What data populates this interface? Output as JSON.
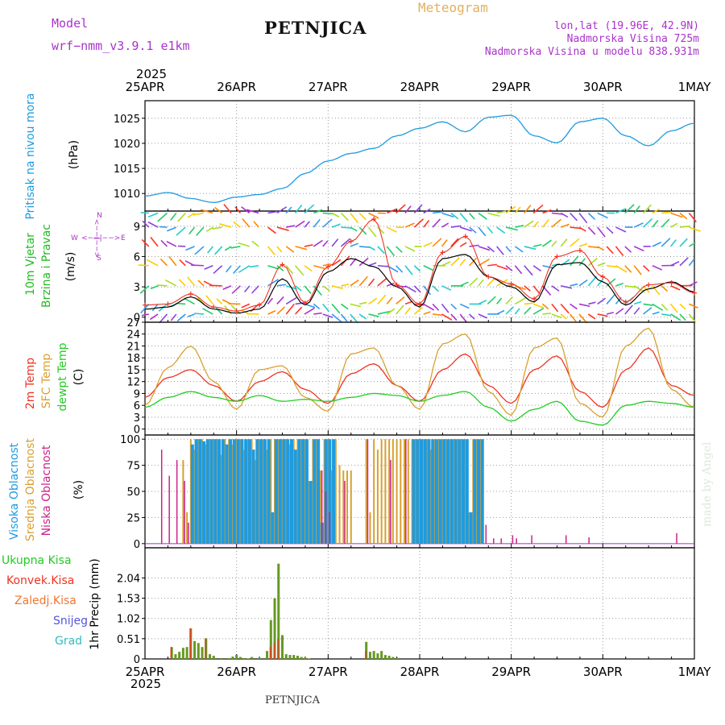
{
  "header": {
    "model_label": "Model",
    "model_name": "wrf−nmm_v3.9.1  e1km",
    "station": "PETNJICA",
    "meteogram": "Meteogram",
    "lonlat": "lon,lat (19.96E, 42.9N)",
    "elevation": "Nadmorska Visina 725m",
    "model_elevation": "Nadmorska Visina u modelu 838.931m",
    "footer_station": "PETNJICA",
    "credit": "made by Angel"
  },
  "colors": {
    "pressure": "#1e9be0",
    "wind_label": "#22bb22",
    "temp2m": "#ee3322",
    "sfc": "#d8a030",
    "dewpt": "#22cc22",
    "high_cloud": "#1e9be0",
    "mid_cloud": "#d8a030",
    "low_cloud": "#cc2288",
    "precip_total": "#669922",
    "precip_conv": "#ee3322",
    "frozen": "#ee7733",
    "snow": "#5555dd",
    "hail": "#33bbbb",
    "purple": "#aa33cc",
    "title_gold": "#e0b060"
  },
  "chart_data": [
    {
      "type": "line",
      "panel": "pressure",
      "ylabel_colored": "Pritisak na nivou mora",
      "ylabel_unit": "(hPa)",
      "xticks": [
        "25APR",
        "26APR",
        "27APR",
        "28APR",
        "29APR",
        "30APR",
        "1MAY"
      ],
      "year": "2025",
      "ylim": [
        1006.5,
        1028.5
      ],
      "yticks": [
        1010,
        1015,
        1020,
        1025
      ],
      "x_unit": "hours since 25APR 00UTC",
      "series": [
        {
          "name": "sea level pressure",
          "x": [
            0,
            6,
            12,
            18,
            24,
            30,
            36,
            42,
            48,
            54,
            60,
            66,
            72,
            78,
            84,
            90,
            96,
            102,
            108,
            114,
            120,
            126,
            132,
            138,
            144
          ],
          "values": [
            1009.5,
            1010.2,
            1009.0,
            1008.2,
            1009.3,
            1009.8,
            1011.0,
            1014.0,
            1016.5,
            1018.0,
            1019.0,
            1021.5,
            1023.0,
            1024.3,
            1022.3,
            1025.2,
            1025.6,
            1021.5,
            1020.1,
            1024.3,
            1025.0,
            1021.5,
            1019.5,
            1022.5,
            1024.0
          ]
        }
      ]
    },
    {
      "type": "line",
      "panel": "wind",
      "ylabel_colored": "10m Vjetar",
      "ylabel_colored2": "Brzina i Pravac",
      "ylabel_unit": "(m/s)",
      "compass": [
        "W",
        "<−−|−−>",
        "E",
        "S",
        "N"
      ],
      "ylim": [
        -0.5,
        10.5
      ],
      "yticks": [
        0,
        3,
        6,
        9
      ],
      "series": [
        {
          "name": "wind speed",
          "x": [
            0,
            6,
            12,
            18,
            24,
            30,
            36,
            42,
            48,
            54,
            60,
            66,
            72,
            78,
            84,
            90,
            96,
            102,
            108,
            114,
            120,
            126,
            132,
            138,
            144
          ],
          "values": [
            0.8,
            1.0,
            2.0,
            0.8,
            0.4,
            0.8,
            3.8,
            1.2,
            4.5,
            5.8,
            5.0,
            3.0,
            1.0,
            5.8,
            6.2,
            4.0,
            3.0,
            1.5,
            5.2,
            5.4,
            3.5,
            1.2,
            2.8,
            3.5,
            2.5
          ]
        },
        {
          "name": "wind gust",
          "x": [
            0,
            6,
            12,
            18,
            24,
            30,
            36,
            42,
            48,
            54,
            60,
            66,
            72,
            78,
            84,
            90,
            96,
            102,
            108,
            114,
            120,
            126,
            132,
            138,
            144
          ],
          "values": [
            1.2,
            1.3,
            2.3,
            1.0,
            0.6,
            1.2,
            5.2,
            1.4,
            5.0,
            7.5,
            9.7,
            3.2,
            1.3,
            6.4,
            8.0,
            4.0,
            3.3,
            1.8,
            6.0,
            6.6,
            4.0,
            1.5,
            3.2,
            3.4,
            2.4
          ]
        }
      ]
    },
    {
      "type": "line",
      "panel": "temperature",
      "ylabel_2m": "2m Temp",
      "ylabel_sfc": "SFC Temp",
      "ylabel_dew": "dewpt Temp",
      "ylabel_unit": "(C)",
      "ylim": [
        -1.5,
        27
      ],
      "yticks": [
        0,
        3,
        6,
        9,
        12,
        15,
        18,
        21,
        24,
        27
      ],
      "series": [
        {
          "name": "2m Temp",
          "x": [
            0,
            6,
            12,
            18,
            24,
            30,
            36,
            42,
            48,
            54,
            60,
            66,
            72,
            78,
            84,
            90,
            96,
            102,
            108,
            114,
            120,
            126,
            132,
            138,
            144
          ],
          "values": [
            8.0,
            13.0,
            15.0,
            11.0,
            7.0,
            12.0,
            14.5,
            10.0,
            6.5,
            14.0,
            16.5,
            11.0,
            7.0,
            15.0,
            19.0,
            11.0,
            6.5,
            15.0,
            18.5,
            9.5,
            5.5,
            15.0,
            20.5,
            11.0,
            8.5
          ]
        },
        {
          "name": "SFC Temp",
          "x": [
            0,
            6,
            12,
            18,
            24,
            30,
            36,
            42,
            48,
            54,
            60,
            66,
            72,
            78,
            84,
            90,
            96,
            102,
            108,
            114,
            120,
            126,
            132,
            138,
            144
          ],
          "values": [
            6.0,
            15.5,
            21.0,
            12.0,
            5.0,
            15.0,
            16.0,
            8.0,
            4.5,
            19.0,
            20.5,
            11.0,
            5.0,
            21.5,
            24.0,
            9.5,
            3.5,
            20.5,
            23.0,
            6.5,
            3.0,
            21.0,
            25.5,
            10.0,
            5.5
          ]
        },
        {
          "name": "dewpt Temp",
          "x": [
            0,
            6,
            12,
            18,
            24,
            30,
            36,
            42,
            48,
            54,
            60,
            66,
            72,
            78,
            84,
            90,
            96,
            102,
            108,
            114,
            120,
            126,
            132,
            138,
            144
          ],
          "values": [
            5.5,
            8.0,
            9.5,
            8.0,
            7.0,
            8.5,
            7.0,
            7.5,
            7.0,
            8.0,
            9.0,
            8.5,
            7.0,
            8.5,
            9.5,
            5.5,
            2.0,
            5.0,
            7.0,
            2.0,
            1.0,
            6.0,
            7.0,
            6.5,
            5.5
          ]
        }
      ]
    },
    {
      "type": "bar",
      "panel": "cloud",
      "ylabel_high": "Visoka Oblacnost",
      "ylabel_mid": "Srednja Oblacnost",
      "ylabel_low": "Niska Oblacnost",
      "ylabel_unit": "(%)",
      "ylim": [
        -4,
        104
      ],
      "yticks": [
        0,
        25,
        50,
        75,
        100
      ],
      "high_cloud": {
        "x": [
          12,
          13,
          14,
          15,
          16,
          17,
          18,
          19,
          20,
          21,
          22,
          23,
          24,
          25,
          26,
          27,
          28,
          29,
          30,
          31,
          32,
          33,
          34,
          35,
          36,
          37,
          38,
          39,
          40,
          41,
          42,
          43,
          44,
          45,
          46,
          47,
          48,
          49,
          70,
          71,
          72,
          73,
          74,
          75,
          76,
          77,
          78,
          79,
          80,
          81,
          82,
          83,
          84,
          85,
          86,
          87,
          88
        ],
        "values": [
          95,
          100,
          100,
          98,
          100,
          100,
          100,
          100,
          100,
          95,
          100,
          100,
          100,
          100,
          100,
          100,
          90,
          100,
          100,
          100,
          100,
          30,
          100,
          100,
          100,
          100,
          100,
          90,
          100,
          100,
          100,
          60,
          100,
          100,
          20,
          100,
          100,
          100,
          100,
          100,
          100,
          100,
          100,
          100,
          100,
          100,
          100,
          100,
          100,
          100,
          100,
          100,
          100,
          30,
          100,
          100,
          100
        ]
      },
      "mid_cloud": {
        "x": [
          10,
          11,
          12,
          13,
          14,
          15,
          16,
          17,
          18,
          19,
          20,
          21,
          22,
          23,
          24,
          25,
          26,
          27,
          28,
          29,
          30,
          31,
          32,
          33,
          34,
          35,
          36,
          37,
          38,
          39,
          40,
          41,
          42,
          43,
          44,
          45,
          46,
          47,
          48,
          49,
          50,
          51,
          52,
          53,
          54,
          58,
          59,
          60,
          61,
          62,
          63,
          64,
          65,
          66,
          67,
          68,
          69,
          70,
          71,
          72,
          73,
          74,
          75,
          76,
          77,
          78,
          79,
          80,
          81,
          82,
          83,
          84,
          85,
          86,
          87,
          88
        ],
        "values": [
          80,
          30,
          100,
          90,
          100,
          100,
          95,
          100,
          100,
          100,
          85,
          100,
          100,
          95,
          100,
          100,
          90,
          100,
          100,
          80,
          100,
          100,
          90,
          100,
          100,
          100,
          100,
          100,
          95,
          100,
          100,
          100,
          100,
          60,
          100,
          100,
          70,
          100,
          100,
          70,
          100,
          75,
          70,
          70,
          70,
          100,
          30,
          100,
          90,
          100,
          100,
          100,
          100,
          100,
          100,
          100,
          100,
          100,
          100,
          100,
          100,
          100,
          90,
          100,
          100,
          100,
          100,
          100,
          100,
          100,
          100,
          100,
          30,
          100,
          100,
          100
        ]
      },
      "low_cloud": {
        "x": [
          4,
          6,
          8,
          10,
          11,
          46,
          47,
          48,
          52,
          58,
          64,
          68,
          89,
          91,
          93,
          96,
          97,
          101,
          110,
          116,
          139
        ],
        "values": [
          90,
          65,
          80,
          60,
          20,
          70,
          50,
          30,
          60,
          100,
          80,
          100,
          18,
          5,
          5,
          8,
          5,
          8,
          8,
          6,
          10
        ]
      }
    },
    {
      "type": "bar",
      "panel": "precip",
      "ylabel": "1hr Precip (mm)",
      "legend": [
        "Ukupna Kisa",
        "Konvek.Kisa",
        "Zaledj.Kisa",
        "Snijeg",
        "Grad"
      ],
      "ylim": [
        0,
        2.8
      ],
      "yticks": [
        0,
        0.51,
        1.02,
        1.53,
        2.04
      ],
      "ytick_labels": [
        "0",
        "0.51",
        "1.02",
        "1.53",
        "2.04"
      ],
      "total": {
        "x": [
          7,
          8,
          9,
          10,
          11,
          12,
          13,
          14,
          15,
          16,
          17,
          18,
          20,
          22,
          23,
          24,
          25,
          26,
          27,
          28,
          30,
          32,
          33,
          34,
          35,
          36,
          37,
          38,
          39,
          40,
          41,
          42,
          43,
          58,
          59,
          60,
          61,
          62,
          63,
          64,
          65,
          66
        ],
        "values": [
          0.3,
          0.12,
          0.18,
          0.28,
          0.3,
          0.77,
          0.45,
          0.4,
          0.3,
          0.52,
          0.12,
          0.08,
          0.02,
          0.02,
          0.06,
          0.1,
          0.05,
          0.02,
          0.01,
          0.05,
          0.02,
          0.2,
          0.98,
          1.53,
          2.4,
          0.6,
          0.12,
          0.1,
          0.1,
          0.08,
          0.05,
          0.02,
          0.01,
          0.43,
          0.18,
          0.2,
          0.14,
          0.2,
          0.1,
          0.08,
          0.05,
          0.03
        ]
      },
      "convective": {
        "x": [
          7,
          12,
          16,
          33,
          34,
          35,
          58
        ],
        "values": [
          0.3,
          0.77,
          0.52,
          0.3,
          0.4,
          0.5,
          0.2
        ]
      }
    }
  ]
}
